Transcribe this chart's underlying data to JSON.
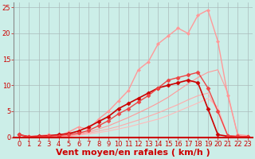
{
  "background_color": "#cceee8",
  "grid_color": "#aabbbb",
  "xlabel": "Vent moyen/en rafales ( km/h )",
  "xlabel_color": "#cc0000",
  "xlabel_fontsize": 8,
  "tick_color": "#cc0000",
  "tick_fontsize": 6,
  "xlim": [
    -0.5,
    23.5
  ],
  "ylim": [
    0,
    26
  ],
  "yticks": [
    0,
    5,
    10,
    15,
    20,
    25
  ],
  "xticks": [
    0,
    1,
    2,
    3,
    4,
    5,
    6,
    7,
    8,
    9,
    10,
    11,
    12,
    13,
    14,
    15,
    16,
    17,
    18,
    19,
    20,
    21,
    22,
    23
  ],
  "lines": [
    {
      "x": [
        0,
        1,
        2,
        3,
        4,
        5,
        6,
        7,
        8,
        9,
        10,
        11,
        12,
        13,
        14,
        15,
        16,
        17,
        18,
        19,
        20,
        21,
        22,
        23
      ],
      "y": [
        0,
        0,
        0,
        0,
        0,
        0.2,
        0.4,
        0.6,
        0.9,
        1.2,
        1.6,
        2.0,
        2.5,
        3.0,
        3.5,
        4.2,
        5.0,
        5.8,
        6.6,
        7.5,
        5.8,
        0.3,
        0.1,
        0.0
      ],
      "color": "#ffbbbb",
      "linewidth": 0.8,
      "marker": null
    },
    {
      "x": [
        0,
        1,
        2,
        3,
        4,
        5,
        6,
        7,
        8,
        9,
        10,
        11,
        12,
        13,
        14,
        15,
        16,
        17,
        18,
        19,
        20,
        21,
        22,
        23
      ],
      "y": [
        0,
        0,
        0,
        0,
        0.1,
        0.2,
        0.5,
        0.8,
        1.2,
        1.6,
        2.1,
        2.7,
        3.3,
        4.0,
        4.7,
        5.5,
        6.3,
        7.2,
        8.0,
        8.5,
        5.0,
        0.2,
        0.1,
        0.0
      ],
      "color": "#ffaaaa",
      "linewidth": 0.8,
      "marker": null
    },
    {
      "x": [
        0,
        1,
        2,
        3,
        4,
        5,
        6,
        7,
        8,
        9,
        10,
        11,
        12,
        13,
        14,
        15,
        16,
        17,
        18,
        19,
        20,
        21,
        22,
        23
      ],
      "y": [
        0,
        0,
        0,
        0,
        0.1,
        0.3,
        0.6,
        1.0,
        1.6,
        2.2,
        3.0,
        3.8,
        4.7,
        5.6,
        6.6,
        7.7,
        9.0,
        10.3,
        11.5,
        12.5,
        13.0,
        8.5,
        0.3,
        0.1
      ],
      "color": "#ff9999",
      "linewidth": 0.8,
      "marker": null
    },
    {
      "x": [
        0,
        1,
        2,
        3,
        4,
        5,
        6,
        7,
        8,
        9,
        10,
        11,
        12,
        13,
        14,
        15,
        16,
        17,
        18,
        19,
        20,
        21,
        22,
        23
      ],
      "y": [
        0.5,
        0.2,
        0.3,
        0.5,
        0.3,
        1.0,
        2.0,
        1.5,
        3.5,
        5.0,
        7.0,
        9.0,
        13.0,
        14.5,
        18.0,
        19.5,
        21.0,
        20.0,
        23.5,
        24.5,
        18.5,
        8.0,
        0.5,
        0.3
      ],
      "color": "#ff9999",
      "linewidth": 1.0,
      "marker": "D",
      "markersize": 2.0
    },
    {
      "x": [
        0,
        1,
        2,
        3,
        4,
        5,
        6,
        7,
        8,
        9,
        10,
        11,
        12,
        13,
        14,
        15,
        16,
        17,
        18,
        19,
        20,
        21,
        22,
        23
      ],
      "y": [
        0.5,
        0.1,
        0.2,
        0.3,
        0.5,
        0.7,
        1.2,
        2.0,
        3.0,
        4.0,
        5.5,
        6.5,
        7.5,
        8.5,
        9.5,
        10.0,
        10.5,
        11.0,
        10.5,
        5.5,
        0.5,
        0.2,
        0.1,
        0.1
      ],
      "color": "#cc0000",
      "linewidth": 1.2,
      "marker": "D",
      "markersize": 2.5
    },
    {
      "x": [
        0,
        1,
        2,
        3,
        4,
        5,
        6,
        7,
        8,
        9,
        10,
        11,
        12,
        13,
        14,
        15,
        16,
        17,
        18,
        19,
        20,
        21,
        22,
        23
      ],
      "y": [
        0.5,
        0.1,
        0.1,
        0.2,
        0.3,
        0.5,
        0.8,
        1.3,
        2.2,
        3.2,
        4.5,
        5.5,
        6.8,
        8.0,
        9.5,
        11.0,
        11.5,
        12.0,
        12.5,
        9.5,
        5.0,
        0.3,
        0.2,
        0.1
      ],
      "color": "#ee4444",
      "linewidth": 1.0,
      "marker": "D",
      "markersize": 2.5
    }
  ]
}
